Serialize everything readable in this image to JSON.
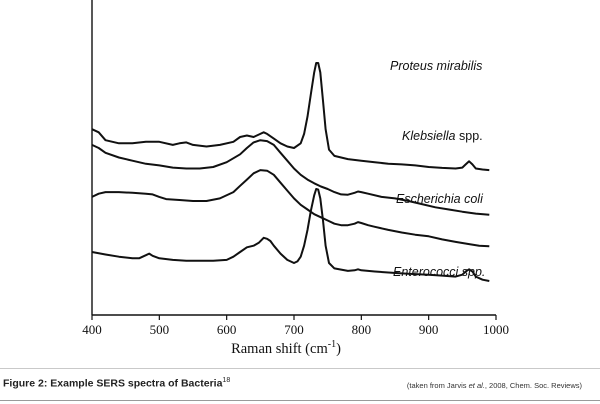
{
  "chart_data": {
    "type": "line",
    "title": "",
    "xlabel": "Raman shift (cm",
    "xlabel_sup": "-1",
    "xlabel_close": ")",
    "ylabel": "",
    "xlim": [
      400,
      1000
    ],
    "x_ticks": [
      400,
      500,
      600,
      700,
      800,
      900,
      1000
    ],
    "y_axis_ticks": false,
    "grid": false,
    "legend": "none",
    "series": [
      {
        "name": "Proteus mirabilis",
        "name_italic": "Proteus mirabilis",
        "name_plain": "",
        "points": [
          [
            400,
            0.59
          ],
          [
            410,
            0.58
          ],
          [
            420,
            0.555
          ],
          [
            440,
            0.545
          ],
          [
            460,
            0.545
          ],
          [
            480,
            0.55
          ],
          [
            500,
            0.55
          ],
          [
            520,
            0.54
          ],
          [
            530,
            0.545
          ],
          [
            540,
            0.548
          ],
          [
            550,
            0.54
          ],
          [
            570,
            0.535
          ],
          [
            590,
            0.54
          ],
          [
            610,
            0.55
          ],
          [
            620,
            0.565
          ],
          [
            630,
            0.57
          ],
          [
            640,
            0.565
          ],
          [
            650,
            0.575
          ],
          [
            655,
            0.58
          ],
          [
            660,
            0.575
          ],
          [
            670,
            0.56
          ],
          [
            680,
            0.545
          ],
          [
            690,
            0.535
          ],
          [
            700,
            0.53
          ],
          [
            710,
            0.545
          ],
          [
            715,
            0.575
          ],
          [
            720,
            0.63
          ],
          [
            725,
            0.7
          ],
          [
            730,
            0.77
          ],
          [
            733,
            0.8
          ],
          [
            736,
            0.8
          ],
          [
            739,
            0.77
          ],
          [
            743,
            0.68
          ],
          [
            747,
            0.59
          ],
          [
            752,
            0.525
          ],
          [
            760,
            0.505
          ],
          [
            780,
            0.495
          ],
          [
            800,
            0.49
          ],
          [
            820,
            0.485
          ],
          [
            840,
            0.48
          ],
          [
            860,
            0.478
          ],
          [
            880,
            0.475
          ],
          [
            900,
            0.47
          ],
          [
            920,
            0.467
          ],
          [
            940,
            0.465
          ],
          [
            950,
            0.468
          ],
          [
            955,
            0.478
          ],
          [
            960,
            0.488
          ],
          [
            965,
            0.478
          ],
          [
            970,
            0.465
          ],
          [
            980,
            0.462
          ],
          [
            990,
            0.46
          ]
        ]
      },
      {
        "name": "Klebsiella spp.",
        "name_italic": "Klebsiella",
        "name_plain": " spp.",
        "points": [
          [
            400,
            0.54
          ],
          [
            410,
            0.53
          ],
          [
            420,
            0.515
          ],
          [
            440,
            0.5
          ],
          [
            460,
            0.49
          ],
          [
            480,
            0.48
          ],
          [
            500,
            0.475
          ],
          [
            520,
            0.468
          ],
          [
            540,
            0.465
          ],
          [
            560,
            0.465
          ],
          [
            580,
            0.47
          ],
          [
            600,
            0.485
          ],
          [
            620,
            0.51
          ],
          [
            630,
            0.53
          ],
          [
            640,
            0.548
          ],
          [
            650,
            0.555
          ],
          [
            660,
            0.552
          ],
          [
            670,
            0.54
          ],
          [
            680,
            0.515
          ],
          [
            690,
            0.49
          ],
          [
            700,
            0.465
          ],
          [
            710,
            0.445
          ],
          [
            720,
            0.43
          ],
          [
            730,
            0.418
          ],
          [
            740,
            0.408
          ],
          [
            750,
            0.4
          ],
          [
            760,
            0.39
          ],
          [
            770,
            0.383
          ],
          [
            780,
            0.382
          ],
          [
            790,
            0.388
          ],
          [
            795,
            0.392
          ],
          [
            800,
            0.39
          ],
          [
            810,
            0.385
          ],
          [
            830,
            0.375
          ],
          [
            850,
            0.37
          ],
          [
            870,
            0.362
          ],
          [
            890,
            0.352
          ],
          [
            910,
            0.342
          ],
          [
            930,
            0.335
          ],
          [
            950,
            0.328
          ],
          [
            970,
            0.322
          ],
          [
            990,
            0.318
          ]
        ]
      },
      {
        "name": "Escherichia coli",
        "name_italic": "Escherichia coli",
        "name_plain": "",
        "points": [
          [
            400,
            0.375
          ],
          [
            410,
            0.385
          ],
          [
            420,
            0.39
          ],
          [
            440,
            0.39
          ],
          [
            460,
            0.388
          ],
          [
            480,
            0.385
          ],
          [
            490,
            0.383
          ],
          [
            500,
            0.375
          ],
          [
            510,
            0.368
          ],
          [
            530,
            0.365
          ],
          [
            550,
            0.362
          ],
          [
            570,
            0.362
          ],
          [
            590,
            0.37
          ],
          [
            610,
            0.39
          ],
          [
            620,
            0.41
          ],
          [
            630,
            0.43
          ],
          [
            640,
            0.45
          ],
          [
            650,
            0.46
          ],
          [
            660,
            0.458
          ],
          [
            670,
            0.445
          ],
          [
            680,
            0.42
          ],
          [
            690,
            0.395
          ],
          [
            700,
            0.37
          ],
          [
            710,
            0.35
          ],
          [
            720,
            0.335
          ],
          [
            730,
            0.32
          ],
          [
            740,
            0.31
          ],
          [
            750,
            0.3
          ],
          [
            760,
            0.29
          ],
          [
            770,
            0.285
          ],
          [
            780,
            0.285
          ],
          [
            790,
            0.29
          ],
          [
            795,
            0.295
          ],
          [
            800,
            0.292
          ],
          [
            810,
            0.285
          ],
          [
            820,
            0.28
          ],
          [
            840,
            0.27
          ],
          [
            860,
            0.262
          ],
          [
            880,
            0.255
          ],
          [
            900,
            0.25
          ],
          [
            920,
            0.24
          ],
          [
            940,
            0.232
          ],
          [
            960,
            0.225
          ],
          [
            975,
            0.22
          ],
          [
            990,
            0.218
          ]
        ]
      },
      {
        "name": "Enterococci spp.",
        "name_italic": "Enterococci spp.",
        "name_plain": "",
        "points": [
          [
            400,
            0.2
          ],
          [
            420,
            0.192
          ],
          [
            440,
            0.185
          ],
          [
            460,
            0.18
          ],
          [
            470,
            0.18
          ],
          [
            480,
            0.19
          ],
          [
            485,
            0.195
          ],
          [
            490,
            0.188
          ],
          [
            500,
            0.18
          ],
          [
            520,
            0.175
          ],
          [
            540,
            0.172
          ],
          [
            560,
            0.172
          ],
          [
            580,
            0.172
          ],
          [
            600,
            0.175
          ],
          [
            610,
            0.185
          ],
          [
            620,
            0.2
          ],
          [
            630,
            0.215
          ],
          [
            640,
            0.22
          ],
          [
            648,
            0.23
          ],
          [
            655,
            0.245
          ],
          [
            660,
            0.242
          ],
          [
            665,
            0.235
          ],
          [
            670,
            0.22
          ],
          [
            680,
            0.195
          ],
          [
            690,
            0.175
          ],
          [
            700,
            0.165
          ],
          [
            705,
            0.17
          ],
          [
            710,
            0.185
          ],
          [
            715,
            0.22
          ],
          [
            720,
            0.27
          ],
          [
            725,
            0.33
          ],
          [
            730,
            0.38
          ],
          [
            733,
            0.4
          ],
          [
            736,
            0.398
          ],
          [
            739,
            0.37
          ],
          [
            743,
            0.3
          ],
          [
            747,
            0.22
          ],
          [
            752,
            0.165
          ],
          [
            760,
            0.148
          ],
          [
            780,
            0.14
          ],
          [
            790,
            0.142
          ],
          [
            795,
            0.145
          ],
          [
            800,
            0.142
          ],
          [
            820,
            0.138
          ],
          [
            840,
            0.135
          ],
          [
            860,
            0.132
          ],
          [
            880,
            0.13
          ],
          [
            900,
            0.128
          ],
          [
            920,
            0.125
          ],
          [
            940,
            0.122
          ],
          [
            950,
            0.128
          ],
          [
            955,
            0.138
          ],
          [
            960,
            0.145
          ],
          [
            965,
            0.138
          ],
          [
            970,
            0.122
          ],
          [
            980,
            0.112
          ],
          [
            990,
            0.108
          ]
        ]
      }
    ]
  },
  "caption": {
    "text": "Figure 2: Example SERS spectra of Bacteria",
    "superscript": "18"
  },
  "credit": {
    "prefix": "(taken from Jarvis ",
    "italic": "et al.",
    "suffix": ", 2008, Chem. Soc. Reviews)"
  }
}
